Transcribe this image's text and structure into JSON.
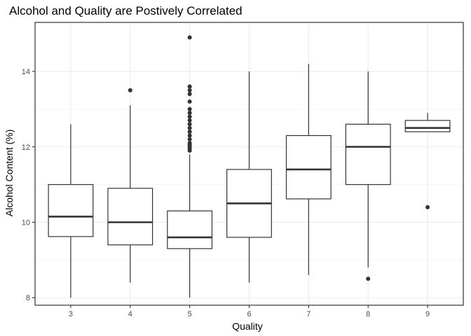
{
  "chart_data": {
    "type": "boxplot",
    "title": "Alcohol and Quality are Postively Correlated",
    "xlabel": "Quality",
    "ylabel": "Alcohol Content (%)",
    "categories": [
      "3",
      "4",
      "5",
      "6",
      "7",
      "8",
      "9"
    ],
    "ylim": [
      7.8,
      15.3
    ],
    "yticks": [
      8,
      10,
      12,
      14
    ],
    "ytick_labels": [
      "8",
      "10",
      "12",
      "14"
    ],
    "grid": true,
    "legend": "none",
    "colors": {
      "panel_border": "#333333",
      "grid_major": "#ebebeb",
      "grid_minor": "#f5f5f5",
      "box_line": "#333333",
      "box_fill": "#ffffff",
      "outlier": "#333333"
    },
    "boxes": [
      {
        "category": "3",
        "whisker_low": 8.0,
        "q1": 9.62,
        "median": 10.15,
        "q3": 11.0,
        "whisker_high": 12.6,
        "outliers": []
      },
      {
        "category": "4",
        "whisker_low": 8.4,
        "q1": 9.4,
        "median": 10.0,
        "q3": 10.9,
        "whisker_high": 13.1,
        "outliers": [
          13.5
        ]
      },
      {
        "category": "5",
        "whisker_low": 8.0,
        "q1": 9.3,
        "median": 9.6,
        "q3": 10.3,
        "whisker_high": 11.8,
        "outliers": [
          11.9,
          11.95,
          12.0,
          12.05,
          12.1,
          12.2,
          12.3,
          12.4,
          12.5,
          12.6,
          12.7,
          12.8,
          12.9,
          13.0,
          13.2,
          13.4,
          13.5,
          13.6,
          14.9
        ]
      },
      {
        "category": "6",
        "whisker_low": 8.4,
        "q1": 9.6,
        "median": 10.5,
        "q3": 11.4,
        "whisker_high": 14.0,
        "outliers": []
      },
      {
        "category": "7",
        "whisker_low": 8.6,
        "q1": 10.62,
        "median": 11.4,
        "q3": 12.3,
        "whisker_high": 14.2,
        "outliers": []
      },
      {
        "category": "8",
        "whisker_low": 8.8,
        "q1": 11.0,
        "median": 12.0,
        "q3": 12.6,
        "whisker_high": 14.0,
        "outliers": [
          8.5
        ]
      },
      {
        "category": "9",
        "whisker_low": 12.4,
        "q1": 12.4,
        "median": 12.5,
        "q3": 12.7,
        "whisker_high": 12.9,
        "outliers": [
          10.4
        ]
      }
    ]
  }
}
